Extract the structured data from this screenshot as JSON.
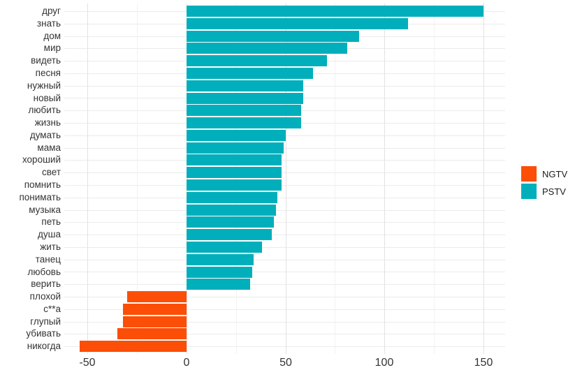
{
  "chart_data": {
    "type": "bar",
    "orientation": "horizontal",
    "title": "",
    "xlabel": "",
    "ylabel": "",
    "grid": true,
    "legend_position": "right",
    "xlim": [
      -65,
      161
    ],
    "x_major_ticks": [
      -50,
      0,
      50,
      100,
      150
    ],
    "x_minor_ticks": [
      -25,
      25,
      75,
      125
    ],
    "categories": [
      "друг",
      "знать",
      "дом",
      "мир",
      "видеть",
      "песня",
      "нужный",
      "новый",
      "любить",
      "жизнь",
      "думать",
      "мама",
      "хороший",
      "свет",
      "помнить",
      "понимать",
      "музыка",
      "петь",
      "душа",
      "жить",
      "танец",
      "любовь",
      "верить",
      "плохой",
      "с**а",
      "глупый",
      "убивать",
      "никогда"
    ],
    "values": [
      150,
      112,
      87,
      81,
      71,
      64,
      59,
      59,
      58,
      58,
      50,
      49,
      48,
      48,
      48,
      46,
      45,
      44,
      43,
      38,
      34,
      33,
      32,
      -30,
      -32,
      -32,
      -35,
      -54
    ],
    "series_rule": "negative values belong to NGTV, positive values to PSTV",
    "legend": [
      {
        "label": "NGTV",
        "color": "#FC4E07"
      },
      {
        "label": "PSTV",
        "color": "#00AFBB"
      }
    ]
  },
  "colors": {
    "positive_bar": "#00AFBB",
    "negative_bar": "#FC4E07",
    "grid_major": "#E2E2E2",
    "grid_minor": "#F2F2F2",
    "grid_row": "#EBEBEB",
    "axis_text": "#333333",
    "background": "#FFFFFF"
  }
}
